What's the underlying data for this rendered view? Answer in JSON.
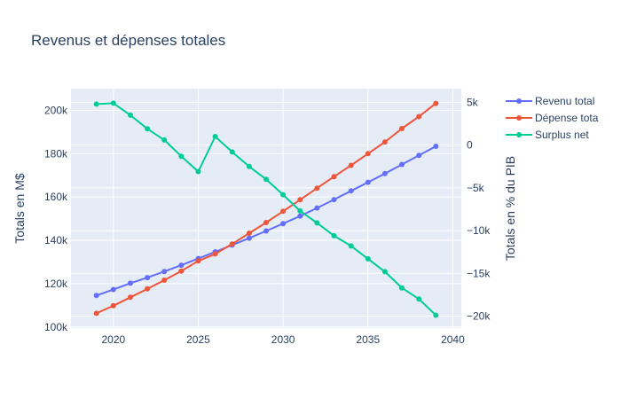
{
  "chart_data": {
    "type": "line",
    "title": "Revenus et dépenses totales",
    "xlabel": "",
    "ylabel": "Totals en M$",
    "y2label": "Totals en % du PIB",
    "x": [
      2019,
      2020,
      2021,
      2022,
      2023,
      2024,
      2025,
      2026,
      2027,
      2028,
      2029,
      2030,
      2031,
      2032,
      2033,
      2034,
      2035,
      2036,
      2037,
      2038,
      2039
    ],
    "xlim": [
      2017.5,
      2040.5
    ],
    "ylim": [
      99500,
      210000
    ],
    "y2lim": [
      -21400,
      6600
    ],
    "xticks": [
      "2020",
      "2025",
      "2030",
      "2035",
      "2040"
    ],
    "yticks": [
      "100k",
      "120k",
      "140k",
      "160k",
      "180k",
      "200k"
    ],
    "y2ticks": [
      "−20k",
      "−15k",
      "−10k",
      "−5k",
      "0",
      "5k"
    ],
    "grid": true,
    "legend_position": "top-right",
    "series": [
      {
        "name": "Revenu total",
        "color": "#636efa",
        "axis": "y",
        "values": [
          114500,
          117300,
          120200,
          122800,
          125600,
          128500,
          131600,
          134700,
          137800,
          141000,
          144300,
          147700,
          151200,
          154900,
          158800,
          162800,
          166800,
          170800,
          175000,
          179200,
          183400
        ]
      },
      {
        "name": "Dépense tota",
        "color": "#ef553b",
        "axis": "y",
        "values": [
          106300,
          109800,
          113700,
          117600,
          121600,
          125800,
          130500,
          133700,
          138300,
          143300,
          148200,
          153400,
          158700,
          164100,
          169400,
          174600,
          180000,
          185400,
          191600,
          197100,
          203200
        ]
      },
      {
        "name": "Surplus net",
        "color": "#00cc96",
        "axis": "y2",
        "values": [
          4800,
          4900,
          3500,
          1900,
          600,
          -1300,
          -3100,
          1000,
          -800,
          -2500,
          -4000,
          -5800,
          -7700,
          -9100,
          -10600,
          -11800,
          -13300,
          -14800,
          -16700,
          -18000,
          -19900
        ]
      }
    ]
  }
}
